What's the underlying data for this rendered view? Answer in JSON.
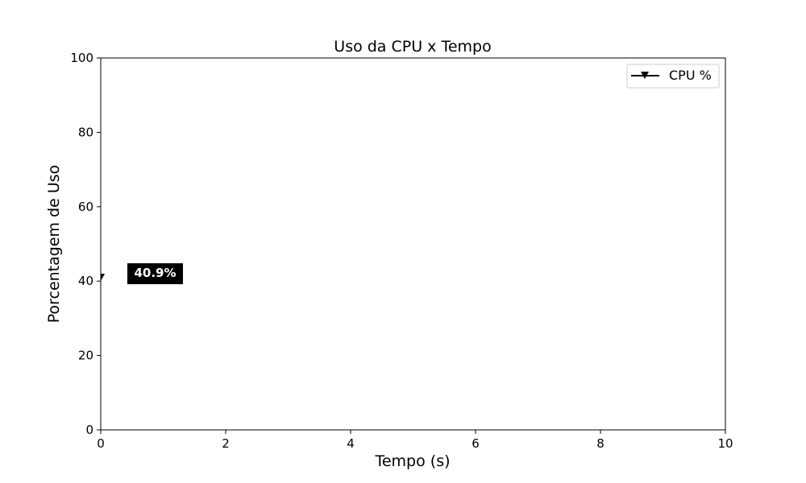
{
  "chart_data": {
    "type": "line",
    "title": "Uso da CPU x Tempo",
    "xlabel": "Tempo (s)",
    "ylabel": "Porcentagem de Uso",
    "xlim": [
      0,
      10
    ],
    "ylim": [
      0,
      100
    ],
    "xticks": [
      "0",
      "2",
      "4",
      "6",
      "8",
      "10"
    ],
    "yticks": [
      "0",
      "20",
      "40",
      "60",
      "80",
      "100"
    ],
    "grid": false,
    "legend_position": "top-right",
    "series": [
      {
        "name": "CPU %",
        "marker": "triangle-down",
        "color": "#000000",
        "x": [
          0
        ],
        "y": [
          40.9
        ]
      }
    ],
    "annotation": {
      "text": "40.9%",
      "background": "#000000",
      "color": "#ffffff"
    }
  }
}
